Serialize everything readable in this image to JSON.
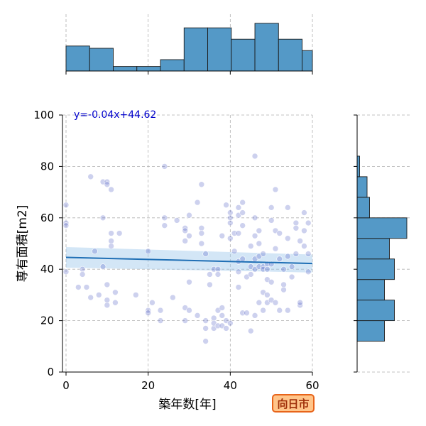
{
  "chart_data": {
    "type": "scatter",
    "xlabel": "築年数[年]",
    "ylabel": "専有面積[m2]",
    "xlim": [
      -1,
      60
    ],
    "ylim": [
      0,
      100
    ],
    "xticks": [
      0,
      20,
      40,
      60
    ],
    "yticks": [
      0,
      20,
      40,
      60,
      80,
      100
    ],
    "grid": true,
    "regression": {
      "label": "y=-0.04x+44.62",
      "slope": -0.04,
      "intercept": 44.62,
      "ci_halfwidth_start": 4,
      "ci_halfwidth_end": 3.5
    },
    "badge": "向日市",
    "top_histogram": {
      "bin_edges": [
        0,
        5.75,
        11.5,
        17.25,
        23,
        28.75,
        34.5,
        40.25,
        46,
        51.75,
        57.5,
        60
      ],
      "counts": [
        11,
        10,
        2,
        2,
        5,
        19,
        19,
        14,
        21,
        14,
        9
      ]
    },
    "right_histogram": {
      "bin_edges": [
        12,
        20,
        28,
        36,
        44,
        52,
        60,
        68,
        76,
        84
      ],
      "counts": [
        11,
        15,
        11,
        15,
        13,
        20,
        5,
        4,
        1
      ]
    },
    "points": [
      [
        0,
        65
      ],
      [
        0,
        58
      ],
      [
        0,
        57
      ],
      [
        0,
        39
      ],
      [
        3,
        33
      ],
      [
        4,
        40
      ],
      [
        4,
        38
      ],
      [
        5,
        33
      ],
      [
        6,
        29
      ],
      [
        6,
        76
      ],
      [
        7,
        47
      ],
      [
        8,
        30
      ],
      [
        9,
        60
      ],
      [
        9,
        74
      ],
      [
        9,
        41
      ],
      [
        10,
        74
      ],
      [
        10,
        73
      ],
      [
        10,
        34
      ],
      [
        10,
        26
      ],
      [
        10,
        28
      ],
      [
        11,
        71
      ],
      [
        11,
        54
      ],
      [
        11,
        51
      ],
      [
        11,
        49
      ],
      [
        12,
        31
      ],
      [
        12,
        27
      ],
      [
        13,
        54
      ],
      [
        17,
        30
      ],
      [
        20,
        47
      ],
      [
        20,
        24
      ],
      [
        20,
        23
      ],
      [
        21,
        27
      ],
      [
        23,
        20
      ],
      [
        23,
        24
      ],
      [
        24,
        60
      ],
      [
        24,
        57
      ],
      [
        24,
        80
      ],
      [
        26,
        29
      ],
      [
        27,
        59
      ],
      [
        29,
        56
      ],
      [
        29,
        55
      ],
      [
        29,
        51
      ],
      [
        29,
        25
      ],
      [
        29,
        20
      ],
      [
        30,
        24
      ],
      [
        30,
        61
      ],
      [
        30,
        53
      ],
      [
        30,
        35
      ],
      [
        32,
        66
      ],
      [
        32,
        22
      ],
      [
        33,
        73
      ],
      [
        33,
        56
      ],
      [
        33,
        54
      ],
      [
        33,
        50
      ],
      [
        34,
        46
      ],
      [
        34,
        20
      ],
      [
        34,
        17
      ],
      [
        34,
        12
      ],
      [
        35,
        38
      ],
      [
        35,
        34
      ],
      [
        36,
        40
      ],
      [
        36,
        21
      ],
      [
        36,
        17
      ],
      [
        36,
        19
      ],
      [
        37,
        40
      ],
      [
        37,
        38
      ],
      [
        37,
        24
      ],
      [
        37,
        18
      ],
      [
        38,
        25
      ],
      [
        38,
        22
      ],
      [
        38,
        18
      ],
      [
        38,
        53
      ],
      [
        39,
        65
      ],
      [
        39,
        20
      ],
      [
        39,
        17
      ],
      [
        40,
        62
      ],
      [
        40,
        60
      ],
      [
        40,
        58
      ],
      [
        40,
        52
      ],
      [
        40,
        19
      ],
      [
        41,
        54
      ],
      [
        41,
        47
      ],
      [
        42,
        64
      ],
      [
        42,
        61
      ],
      [
        42,
        54
      ],
      [
        42,
        43
      ],
      [
        42,
        39
      ],
      [
        42,
        33
      ],
      [
        43,
        66
      ],
      [
        43,
        62
      ],
      [
        43,
        57
      ],
      [
        43,
        44
      ],
      [
        43,
        23
      ],
      [
        44,
        37
      ],
      [
        44,
        23
      ],
      [
        45,
        49
      ],
      [
        45,
        41
      ],
      [
        45,
        38
      ],
      [
        45,
        16
      ],
      [
        46,
        84
      ],
      [
        46,
        60
      ],
      [
        46,
        53
      ],
      [
        46,
        44
      ],
      [
        46,
        40
      ],
      [
        46,
        22
      ],
      [
        47,
        55
      ],
      [
        47,
        50
      ],
      [
        47,
        45
      ],
      [
        47,
        41
      ],
      [
        47,
        27
      ],
      [
        48,
        46
      ],
      [
        48,
        41
      ],
      [
        48,
        40
      ],
      [
        48,
        31
      ],
      [
        48,
        24
      ],
      [
        49,
        42
      ],
      [
        49,
        40
      ],
      [
        49,
        36
      ],
      [
        49,
        30
      ],
      [
        49,
        27
      ],
      [
        50,
        64
      ],
      [
        50,
        59
      ],
      [
        50,
        42
      ],
      [
        50,
        35
      ],
      [
        50,
        28
      ],
      [
        51,
        71
      ],
      [
        51,
        55
      ],
      [
        51,
        48
      ],
      [
        51,
        27
      ],
      [
        52,
        54
      ],
      [
        52,
        44
      ],
      [
        52,
        24
      ],
      [
        53,
        40
      ],
      [
        53,
        34
      ],
      [
        53,
        32
      ],
      [
        54,
        64
      ],
      [
        54,
        52
      ],
      [
        54,
        45
      ],
      [
        54,
        24
      ],
      [
        55,
        41
      ],
      [
        55,
        37
      ],
      [
        56,
        58
      ],
      [
        56,
        56
      ],
      [
        56,
        46
      ],
      [
        57,
        51
      ],
      [
        57,
        26
      ],
      [
        57,
        27
      ],
      [
        58,
        55
      ],
      [
        58,
        49
      ],
      [
        58,
        62
      ],
      [
        59,
        58
      ],
      [
        59,
        46
      ],
      [
        59,
        39
      ]
    ]
  }
}
